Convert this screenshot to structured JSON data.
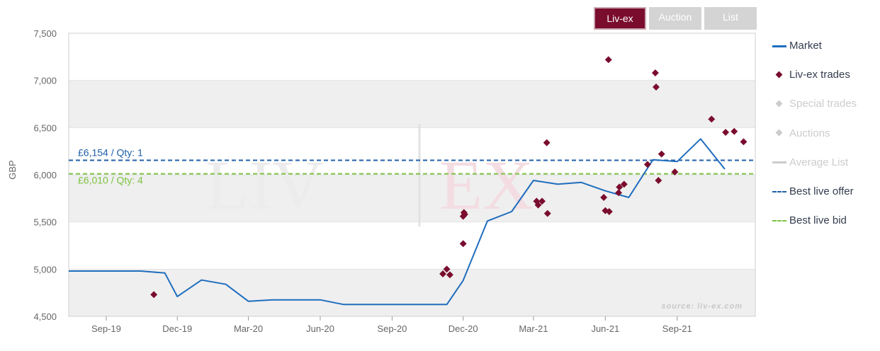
{
  "tabs": [
    {
      "label": "Liv-ex",
      "active": true
    },
    {
      "label": "Auction",
      "active": false
    },
    {
      "label": "List",
      "active": false
    }
  ],
  "legend": [
    {
      "label": "Market",
      "symbol": "line",
      "color": "#1f6dbd",
      "enabled": true
    },
    {
      "label": "Liv-ex trades",
      "symbol": "diamond",
      "color": "#7a0c2e",
      "enabled": true
    },
    {
      "label": "Special trades",
      "symbol": "diamond",
      "color": "#cccccc",
      "enabled": false
    },
    {
      "label": "Auctions",
      "symbol": "diamond",
      "color": "#cccccc",
      "enabled": false
    },
    {
      "label": "Average List",
      "symbol": "line",
      "color": "#cccccc",
      "enabled": false
    },
    {
      "label": "Best live offer",
      "symbol": "dash",
      "color": "#1f5fa8",
      "enabled": true
    },
    {
      "label": "Best live bid",
      "symbol": "dash",
      "color": "#7dc242",
      "enabled": true
    }
  ],
  "watermark": {
    "left": "LIV",
    "right": "EX"
  },
  "source": "source: liv-ex.com",
  "chart_data": {
    "type": "line",
    "ylabel": "GBP",
    "ylim": [
      4500,
      7500
    ],
    "yticks": [
      4500,
      5000,
      5500,
      6000,
      6500,
      7000,
      7500
    ],
    "ytick_labels": [
      "4,500",
      "5,000",
      "5,500",
      "6,000",
      "6,500",
      "7,000",
      "7,500"
    ],
    "xlim": [
      "2019-07-15",
      "2021-12-10"
    ],
    "xticks": [
      "2019-09-01",
      "2019-12-01",
      "2020-03-01",
      "2020-06-01",
      "2020-09-01",
      "2020-12-01",
      "2021-03-01",
      "2021-06-01",
      "2021-09-01"
    ],
    "xtick_labels": [
      "Sep-19",
      "Dec-19",
      "Mar-20",
      "Jun-20",
      "Sep-20",
      "Dec-20",
      "Mar-21",
      "Jun-21",
      "Sep-21"
    ],
    "grid": "alternating horizontal bands",
    "series": [
      {
        "name": "Market",
        "type": "line",
        "color": "#1f6dbd",
        "points": [
          [
            "2019-07-15",
            4980
          ],
          [
            "2019-10-15",
            4980
          ],
          [
            "2019-11-15",
            4960
          ],
          [
            "2019-12-01",
            4710
          ],
          [
            "2020-01-01",
            4885
          ],
          [
            "2020-02-01",
            4840
          ],
          [
            "2020-03-01",
            4660
          ],
          [
            "2020-04-01",
            4675
          ],
          [
            "2020-06-01",
            4675
          ],
          [
            "2020-07-01",
            4625
          ],
          [
            "2020-10-01",
            4625
          ],
          [
            "2020-11-10",
            4625
          ],
          [
            "2020-12-01",
            4880
          ],
          [
            "2021-01-01",
            5510
          ],
          [
            "2021-02-01",
            5610
          ],
          [
            "2021-03-01",
            5940
          ],
          [
            "2021-04-01",
            5900
          ],
          [
            "2021-05-01",
            5920
          ],
          [
            "2021-06-01",
            5830
          ],
          [
            "2021-07-01",
            5760
          ],
          [
            "2021-08-01",
            6160
          ],
          [
            "2021-09-01",
            6140
          ],
          [
            "2021-10-01",
            6380
          ],
          [
            "2021-11-01",
            6060
          ]
        ]
      },
      {
        "name": "Liv-ex trades",
        "type": "scatter",
        "color": "#7a0c2e",
        "points": [
          [
            "2019-11-01",
            4730
          ],
          [
            "2020-11-05",
            4950
          ],
          [
            "2020-11-10",
            5000
          ],
          [
            "2020-11-14",
            4940
          ],
          [
            "2020-12-01",
            5270
          ],
          [
            "2020-12-01",
            5560
          ],
          [
            "2020-12-02",
            5600
          ],
          [
            "2020-12-03",
            5580
          ],
          [
            "2021-03-05",
            5720
          ],
          [
            "2021-03-07",
            5680
          ],
          [
            "2021-03-12",
            5720
          ],
          [
            "2021-03-18",
            6340
          ],
          [
            "2021-03-19",
            5590
          ],
          [
            "2021-05-30",
            5760
          ],
          [
            "2021-06-01",
            5620
          ],
          [
            "2021-06-05",
            7220
          ],
          [
            "2021-06-06",
            5610
          ],
          [
            "2021-06-18",
            5810
          ],
          [
            "2021-06-19",
            5870
          ],
          [
            "2021-06-25",
            5900
          ],
          [
            "2021-07-25",
            6110
          ],
          [
            "2021-08-04",
            7080
          ],
          [
            "2021-08-05",
            6930
          ],
          [
            "2021-08-08",
            5940
          ],
          [
            "2021-08-12",
            6220
          ],
          [
            "2021-08-29",
            6030
          ],
          [
            "2021-10-15",
            6590
          ],
          [
            "2021-11-02",
            6450
          ],
          [
            "2021-11-13",
            6460
          ],
          [
            "2021-11-25",
            6350
          ]
        ]
      }
    ],
    "plot_lines": [
      {
        "name": "Best live offer",
        "value": 6154,
        "label": "£6,154 / Qty: 1",
        "color": "#1f5fa8"
      },
      {
        "name": "Best live bid",
        "value": 6010,
        "label": "£6,010 / Qty: 4",
        "color": "#7dc242"
      }
    ]
  }
}
